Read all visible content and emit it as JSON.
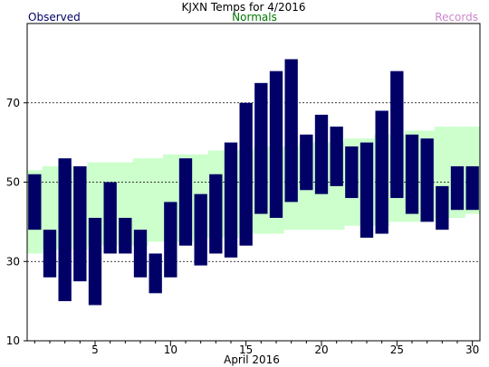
{
  "chart_data": {
    "type": "bar",
    "title": "KJXN Temps for 4/2016",
    "legend": {
      "observed": "Observed",
      "normals": "Normals",
      "records": "Records"
    },
    "xlabel": "April 2016",
    "ylabel": "",
    "x_ticks": [
      "5",
      "10",
      "15",
      "20",
      "25",
      "30"
    ],
    "y_ticks": [
      "10",
      "30",
      "50",
      "70"
    ],
    "dashed_grid_y": [
      30,
      50,
      70
    ],
    "xlim": [
      0.5,
      30.5
    ],
    "ylim": [
      10,
      90
    ],
    "days": [
      1,
      2,
      3,
      4,
      5,
      6,
      7,
      8,
      9,
      10,
      11,
      12,
      13,
      14,
      15,
      16,
      17,
      18,
      19,
      20,
      21,
      22,
      23,
      24,
      25,
      26,
      27,
      28,
      29,
      30
    ],
    "series": [
      {
        "name": "Observed",
        "color": "#000066",
        "high": [
          52,
          38,
          56,
          54,
          41,
          50,
          41,
          38,
          32,
          45,
          56,
          47,
          52,
          60,
          70,
          75,
          78,
          81,
          62,
          67,
          64,
          59,
          60,
          68,
          78,
          62,
          61,
          49,
          54,
          54
        ],
        "low": [
          38,
          26,
          20,
          25,
          19,
          32,
          32,
          26,
          22,
          26,
          34,
          29,
          32,
          31,
          34,
          42,
          41,
          45,
          48,
          47,
          49,
          46,
          36,
          37,
          46,
          42,
          40,
          38,
          43,
          43
        ]
      },
      {
        "name": "Normals",
        "color": "#ccffcc",
        "high": [
          53,
          54,
          54,
          54,
          55,
          55,
          55,
          56,
          56,
          57,
          57,
          57,
          58,
          58,
          58,
          59,
          59,
          59,
          60,
          60,
          60,
          61,
          61,
          62,
          62,
          63,
          63,
          64,
          64,
          64
        ],
        "low": [
          32,
          33,
          33,
          33,
          34,
          34,
          34,
          34,
          35,
          35,
          35,
          36,
          36,
          36,
          37,
          37,
          37,
          38,
          38,
          38,
          38,
          39,
          39,
          39,
          40,
          40,
          40,
          41,
          41,
          42
        ]
      }
    ],
    "colors": {
      "observed_text": "#000066",
      "normals_text": "#007700",
      "records_text": "#cc88cc"
    }
  }
}
